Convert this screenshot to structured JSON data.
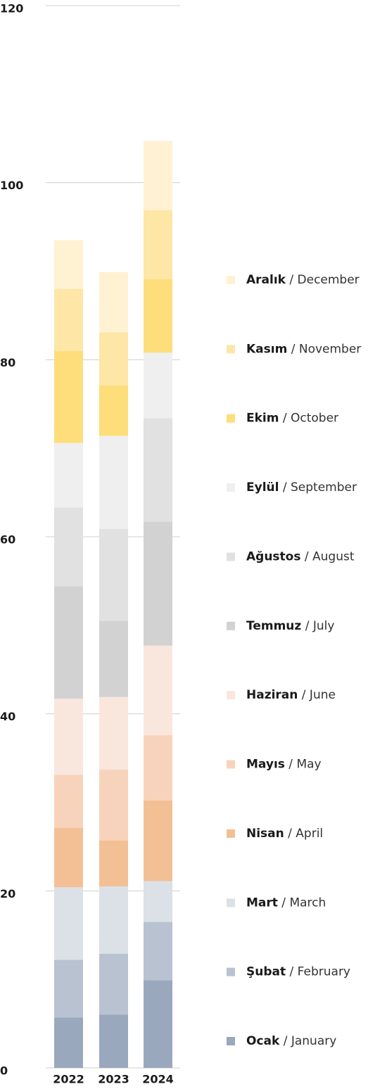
{
  "chart_data": {
    "type": "stacked_bar",
    "categories": [
      "2022",
      "2023",
      "2024"
    ],
    "ylim": [
      0,
      120
    ],
    "yticks": [
      0,
      20,
      40,
      60,
      80,
      100,
      120
    ],
    "grid": true,
    "legend": "right",
    "series": [
      {
        "name": "Ocak / January",
        "color": "#9aa8be",
        "values": [
          5.7,
          6.0,
          9.9
        ]
      },
      {
        "name": "Şubat / February",
        "color": "#b9c2d1",
        "values": [
          6.5,
          6.9,
          6.6
        ]
      },
      {
        "name": "Mart / March",
        "color": "#dce1e7",
        "values": [
          8.2,
          7.6,
          4.6
        ]
      },
      {
        "name": "Nisan / April",
        "color": "#f3c095",
        "values": [
          6.7,
          5.2,
          9.1
        ]
      },
      {
        "name": "Mayıs / May",
        "color": "#f8d3bb",
        "values": [
          6.0,
          8.0,
          7.4
        ]
      },
      {
        "name": "Haziran / June",
        "color": "#f9e7de",
        "values": [
          8.6,
          8.2,
          10.1
        ]
      },
      {
        "name": "Temmuz / July",
        "color": "#d2d2d2",
        "values": [
          12.7,
          8.6,
          14.0
        ]
      },
      {
        "name": "Ağustos / August",
        "color": "#e1e1e1",
        "values": [
          8.9,
          10.4,
          11.7
        ]
      },
      {
        "name": "Eylül / September",
        "color": "#efefef",
        "values": [
          7.3,
          10.5,
          7.4
        ]
      },
      {
        "name": "Ekim / October",
        "color": "#fedd7b",
        "values": [
          10.4,
          5.7,
          8.3
        ]
      },
      {
        "name": "Kasım / November",
        "color": "#fde6a6",
        "values": [
          7.0,
          6.0,
          7.8
        ]
      },
      {
        "name": "Aralık / December",
        "color": "#fef2d3",
        "values": [
          5.5,
          6.8,
          7.8
        ]
      }
    ]
  }
}
